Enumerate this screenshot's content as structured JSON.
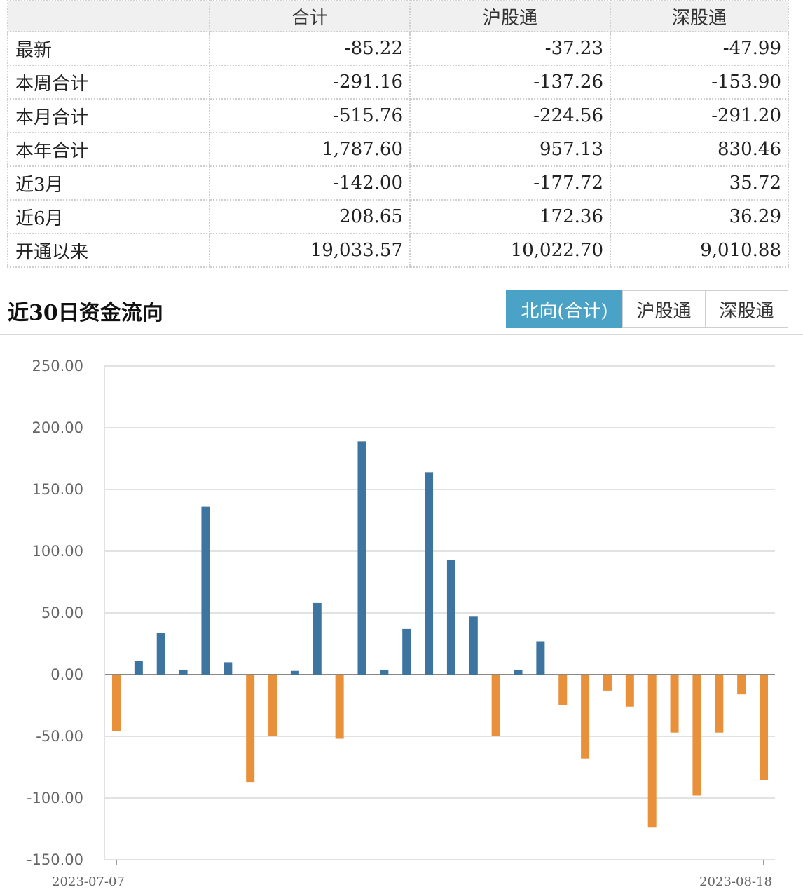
{
  "summary_table": {
    "headers": [
      "",
      "合计",
      "沪股通",
      "深股通"
    ],
    "rows": [
      {
        "label": "最新",
        "total": "-85.22",
        "sh": "-37.23",
        "sz": "-47.99"
      },
      {
        "label": "本周合计",
        "total": "-291.16",
        "sh": "-137.26",
        "sz": "-153.90"
      },
      {
        "label": "本月合计",
        "total": "-515.76",
        "sh": "-224.56",
        "sz": "-291.20"
      },
      {
        "label": "本年合计",
        "total": "1,787.60",
        "sh": "957.13",
        "sz": "830.46"
      },
      {
        "label": "近3月",
        "total": "-142.00",
        "sh": "-177.72",
        "sz": "35.72"
      },
      {
        "label": "近6月",
        "total": "208.65",
        "sh": "172.36",
        "sz": "36.29"
      },
      {
        "label": "开通以来",
        "total": "19,033.57",
        "sh": "10,022.70",
        "sz": "9,010.88"
      }
    ]
  },
  "section": {
    "title": "近30日资金流向",
    "tabs": [
      {
        "label": "北向(合计)",
        "active": true
      },
      {
        "label": "沪股通",
        "active": false
      },
      {
        "label": "深股通",
        "active": false
      }
    ]
  },
  "colors": {
    "positive": "#3d74a0",
    "negative": "#e8903a",
    "tab_active": "#4aa3c6"
  },
  "chart_data": {
    "type": "bar",
    "title": "",
    "xlabel": "",
    "ylabel": "",
    "ylim": [
      -150,
      250
    ],
    "yticks": [
      "250.00",
      "200.00",
      "150.00",
      "100.00",
      "50.00",
      "0.00",
      "-50.00",
      "-100.00",
      "-150.00"
    ],
    "xticks": [
      "2023-07-07",
      "2023-08-18"
    ],
    "grid": true,
    "values": [
      -45.5,
      11,
      34,
      4,
      136,
      10,
      -87,
      -50,
      3,
      58,
      -52,
      189,
      4,
      37,
      164,
      93,
      47,
      -50,
      4,
      27,
      -25,
      -68,
      -13,
      -26,
      -124,
      -47,
      -98,
      -47,
      -16,
      -85.22
    ]
  }
}
